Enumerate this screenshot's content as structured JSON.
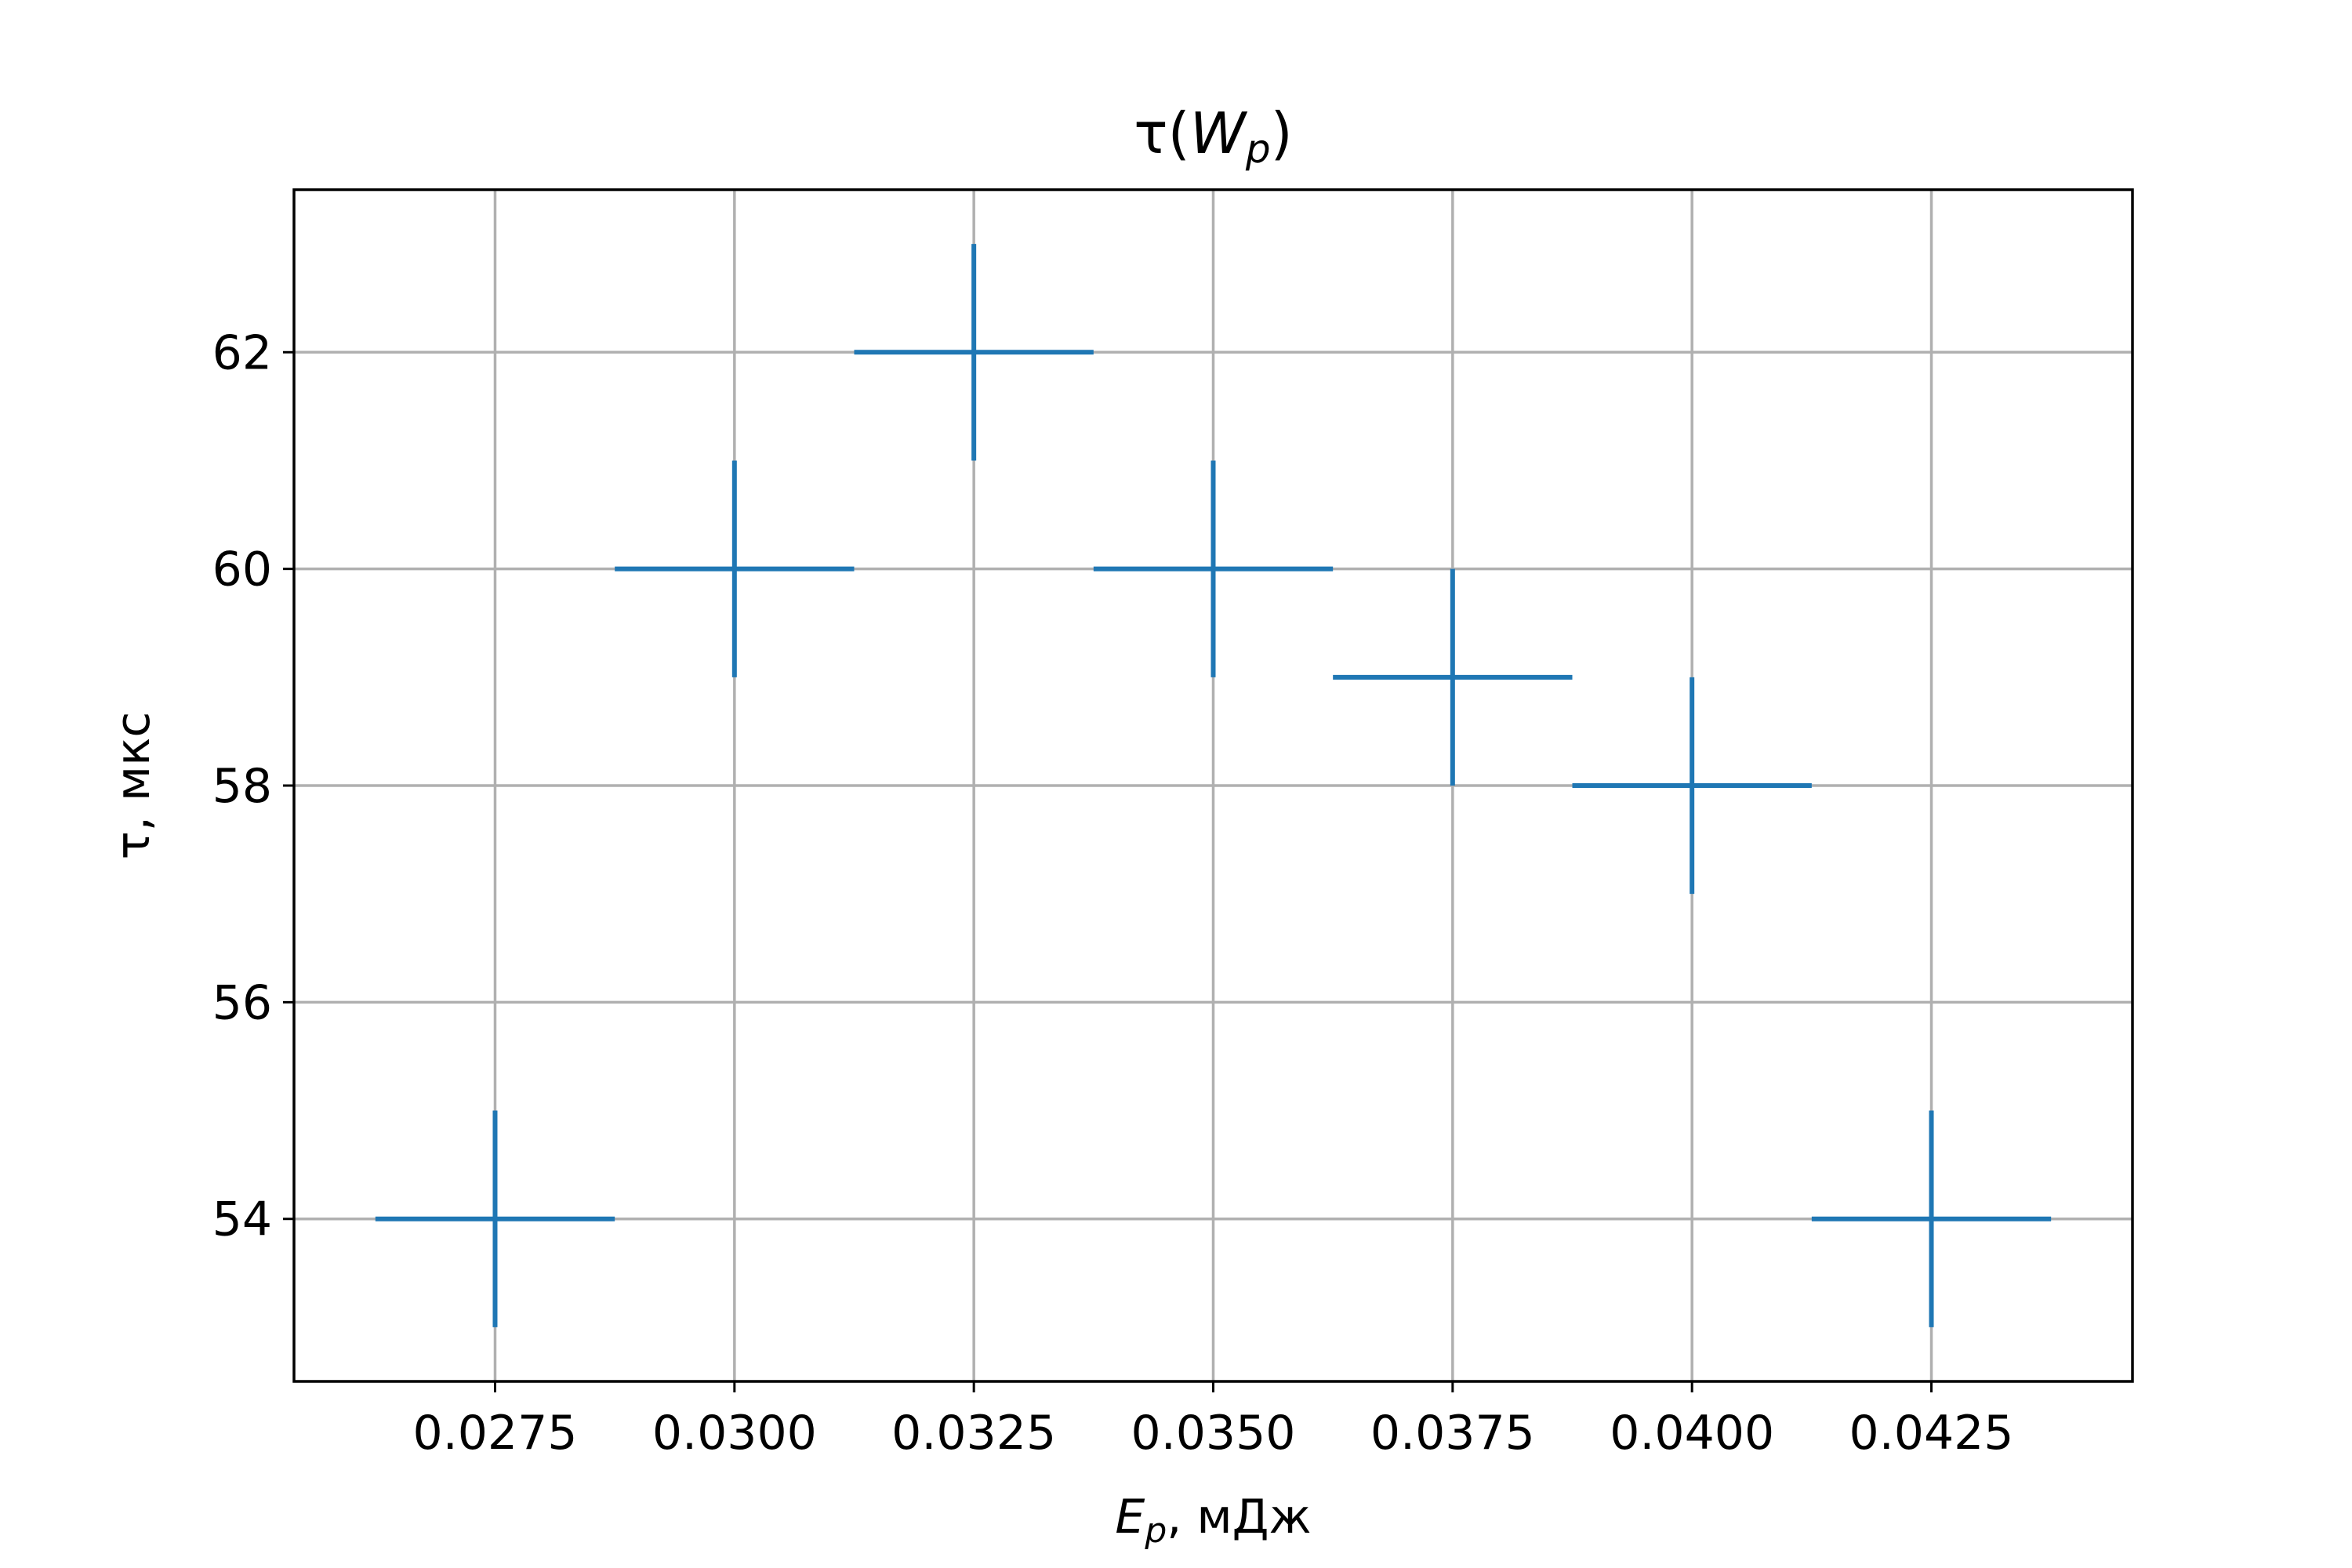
{
  "chart_data": {
    "type": "scatter",
    "title": "τ(W_p)",
    "title_parts": {
      "main": "τ(",
      "var": "W",
      "sub": "p",
      "close": ")"
    },
    "xlabel": "E_p, мДж",
    "xlabel_parts": {
      "var": "E",
      "sub": "p",
      "rest": ", мДж"
    },
    "ylabel": "τ, мкс",
    "xlim": [
      0.0254,
      0.0446
    ],
    "ylim": [
      52.5,
      63.5
    ],
    "xticks": [
      0.0275,
      0.03,
      0.0325,
      0.035,
      0.0375,
      0.04,
      0.0425
    ],
    "xtick_labels": [
      "0.0275",
      "0.0300",
      "0.0325",
      "0.0350",
      "0.0375",
      "0.0400",
      "0.0425"
    ],
    "yticks": [
      54,
      56,
      58,
      60,
      62
    ],
    "ytick_labels": [
      "54",
      "56",
      "58",
      "60",
      "62"
    ],
    "grid": true,
    "series": [
      {
        "color": "#1f77b4",
        "marker": "errorbar",
        "points": [
          {
            "x": 0.0275,
            "y": 54,
            "xerr": 0.00125,
            "yerr": 1
          },
          {
            "x": 0.03,
            "y": 60,
            "xerr": 0.00125,
            "yerr": 1
          },
          {
            "x": 0.0325,
            "y": 62,
            "xerr": 0.00125,
            "yerr": 1
          },
          {
            "x": 0.035,
            "y": 60,
            "xerr": 0.00125,
            "yerr": 1
          },
          {
            "x": 0.0375,
            "y": 59,
            "xerr": 0.00125,
            "yerr": 1
          },
          {
            "x": 0.04,
            "y": 58,
            "xerr": 0.00125,
            "yerr": 1
          },
          {
            "x": 0.0425,
            "y": 54,
            "xerr": 0.00125,
            "yerr": 1
          }
        ]
      }
    ]
  }
}
